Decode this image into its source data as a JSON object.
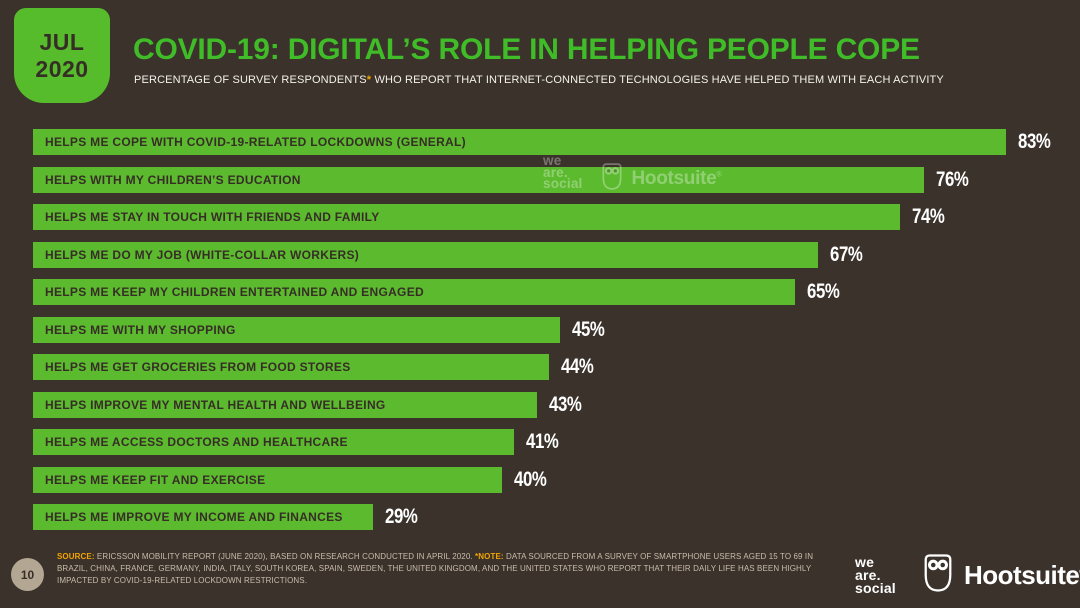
{
  "badge": {
    "month": "JUL",
    "year": "2020"
  },
  "header": {
    "title": "COVID-19: DIGITAL’S ROLE IN HELPING PEOPLE COPE",
    "subtitle_before_asterisk": "PERCENTAGE OF SURVEY RESPONDENTS",
    "subtitle_asterisk": "*",
    "subtitle_after_asterisk": " WHO REPORT THAT INTERNET-CONNECTED TECHNOLOGIES HAVE HELPED THEM WITH EACH ACTIVITY"
  },
  "chart_data": {
    "type": "bar",
    "orientation": "horizontal",
    "categories": [
      "HELPS ME COPE WITH COVID-19-RELATED LOCKDOWNS (GENERAL)",
      "HELPS WITH MY CHILDREN’S EDUCATION",
      "HELPS ME STAY IN TOUCH WITH FRIENDS AND FAMILY",
      "HELPS ME DO MY JOB (WHITE-COLLAR WORKERS)",
      "HELPS ME KEEP MY CHILDREN ENTERTAINED AND ENGAGED",
      "HELPS ME WITH MY SHOPPING",
      "HELPS ME GET GROCERIES FROM FOOD STORES",
      "HELPS IMPROVE MY MENTAL HEALTH AND WELLBEING",
      "HELPS ME ACCESS DOCTORS AND HEALTHCARE",
      "HELPS ME KEEP FIT AND EXERCISE",
      "HELPS ME IMPROVE MY INCOME AND FINANCES"
    ],
    "values": [
      83,
      76,
      74,
      67,
      65,
      45,
      44,
      43,
      41,
      40,
      29
    ],
    "value_suffix": "%",
    "xlim": [
      0,
      100
    ],
    "grid": false,
    "legend": false,
    "bar_color": "#5cba2f",
    "bar_label_color": "#362e26",
    "value_label_color": "#ffffff"
  },
  "watermark": {
    "we_are_social_lines": [
      "we",
      "are.",
      "social"
    ],
    "hootsuite": "Hootsuite",
    "registered": "®"
  },
  "footer": {
    "page_number": "10",
    "source_label": "SOURCE:",
    "source_text": " ERICSSON MOBILITY REPORT (JUNE 2020), BASED ON RESEARCH CONDUCTED IN APRIL 2020. ",
    "note_label": "*NOTE:",
    "note_text": " DATA SOURCED FROM A SURVEY OF SMARTPHONE USERS AGED 15 TO 69 IN BRAZIL, CHINA, FRANCE, GERMANY, INDIA, ITALY, SOUTH KOREA, SPAIN, SWEDEN, THE UNITED KINGDOM, AND THE UNITED STATES WHO REPORT THAT THEIR DAILY LIFE HAS BEEN HIGHLY IMPACTED BY COVID-19-RELATED LOCKDOWN RESTRICTIONS."
  },
  "logos": {
    "we_are_social_lines": [
      "we",
      "are.",
      "social"
    ],
    "hootsuite": "Hootsuite",
    "registered": "®"
  },
  "colors": {
    "background": "#3a322b",
    "title_green": "#3fbc28",
    "bar_green": "#5cba2f",
    "badge_green": "#57bc2c",
    "accent_orange": "#f5a400",
    "footer_text": "#c9bcaa",
    "page_circle": "#b3a693"
  }
}
